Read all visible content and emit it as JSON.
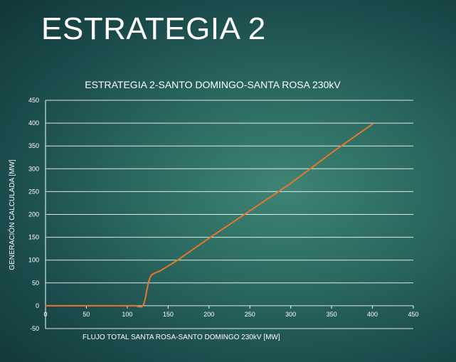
{
  "slide": {
    "title": "ESTRATEGIA 2"
  },
  "colors": {
    "line": "#e8762a",
    "grid": "#ffffff",
    "text": "#ffffff"
  },
  "chart_data": {
    "type": "line",
    "title": "ESTRATEGIA 2-SANTO DOMINGO-SANTA ROSA 230kV",
    "xlabel": "FLUJO TOTAL SANTA ROSA-SANTO DOMINGO 230kV [MW]",
    "ylabel": "GENERACIÓN CALCULADA  [MW]",
    "xlim": [
      0,
      450
    ],
    "ylim": [
      -50,
      450
    ],
    "xticks": [
      0,
      50,
      100,
      150,
      200,
      250,
      300,
      350,
      400,
      450
    ],
    "yticks": [
      -50,
      0,
      50,
      100,
      150,
      200,
      250,
      300,
      350,
      400,
      450
    ],
    "grid": true,
    "legend": "none",
    "series": [
      {
        "x": [
          0,
          110,
          114,
          118,
          120,
          122,
          124,
          126,
          128,
          130,
          134,
          140,
          160,
          200,
          250,
          300,
          350,
          400
        ],
        "y": [
          0,
          0,
          -2,
          -2,
          3,
          15,
          35,
          52,
          62,
          68,
          72,
          76,
          98,
          148,
          208,
          268,
          335,
          398
        ]
      }
    ]
  }
}
